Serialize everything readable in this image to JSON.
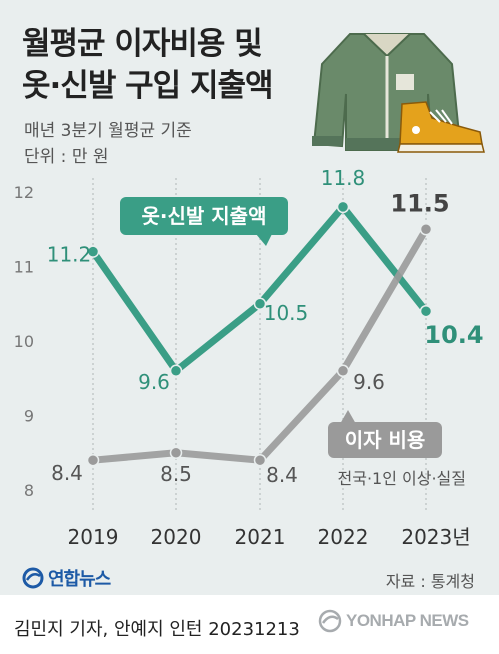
{
  "header": {
    "title_line1": "월평균 이자비용 및",
    "title_line2": "옷·신발 구입 지출액",
    "subtitle": "매년 3분기 월평균 기준",
    "unit": "단위 : 만 원"
  },
  "chart_data": {
    "type": "line",
    "categories": [
      "2019",
      "2020",
      "2021",
      "2022",
      "2023년"
    ],
    "ylim": [
      8,
      12
    ],
    "yticks": [
      "8",
      "9",
      "10",
      "11",
      "12"
    ],
    "series": [
      {
        "name": "옷·신발 지출액",
        "values": [
          11.2,
          9.6,
          10.5,
          11.8,
          10.4
        ],
        "labels": [
          "11.2",
          "9.6",
          "10.5",
          "11.8",
          "10.4"
        ],
        "color": "#3a9e86"
      },
      {
        "name": "이자 비용",
        "values": [
          8.4,
          8.5,
          8.4,
          9.6,
          11.5
        ],
        "labels": [
          "8.4",
          "8.5",
          "8.4",
          "9.6",
          "11.5"
        ],
        "color": "#9a9a9a"
      }
    ],
    "annotation": "전국·1인 이상·실질",
    "grid": "vertical-dotted"
  },
  "footer": {
    "logo": "연합뉴스",
    "source": "자료 : 통계청",
    "credit": "김민지 기자, 안예지 인턴  20231213",
    "watermark": "YONHAP NEWS"
  },
  "colors": {
    "background": "#e9eeee",
    "clothing_line": "#3a9e86",
    "interest_line": "#9a9a9a",
    "brand": "#1d5aa6"
  },
  "icons": [
    "jacket-icon",
    "sneaker-icon",
    "yonhap-globe-icon"
  ]
}
